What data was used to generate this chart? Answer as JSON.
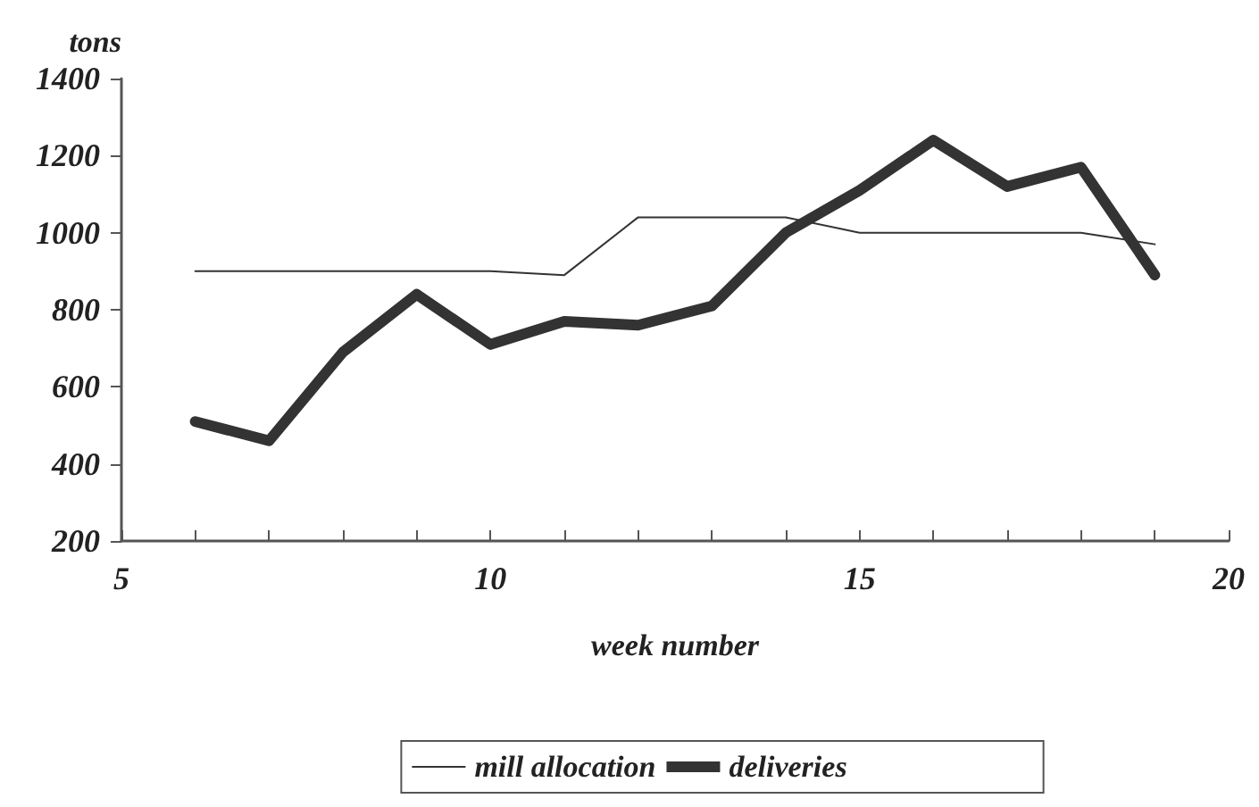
{
  "chart_data": {
    "type": "line",
    "xlabel": "week number",
    "ylabel": "tons",
    "x": [
      6,
      7,
      8,
      9,
      10,
      11,
      12,
      13,
      14,
      15,
      16,
      17,
      18,
      19
    ],
    "series": [
      {
        "name": "mill allocation",
        "color": "#333333",
        "values": [
          900,
          900,
          900,
          900,
          900,
          890,
          1040,
          1040,
          1040,
          1000,
          1000,
          1000,
          1000,
          970
        ]
      },
      {
        "name": "deliveries",
        "color": "#333333",
        "values": [
          510,
          460,
          690,
          840,
          710,
          770,
          760,
          810,
          1000,
          1110,
          1240,
          1120,
          1170,
          890
        ]
      }
    ],
    "xlim": [
      5,
      20
    ],
    "xticks": [
      5,
      {
        "value": 6,
        "label": null
      },
      {
        "value": 7,
        "label": null
      },
      {
        "value": 8,
        "label": null
      },
      {
        "value": 9,
        "label": null
      },
      10,
      {
        "value": 11,
        "label": null
      },
      {
        "value": 12,
        "label": null
      },
      {
        "value": 13,
        "label": null
      },
      {
        "value": 14,
        "label": null
      },
      15,
      {
        "value": 16,
        "label": null
      },
      {
        "value": 17,
        "label": null
      },
      {
        "value": 18,
        "label": null
      },
      {
        "value": 19,
        "label": null
      },
      20
    ],
    "ylim": [
      200,
      1400
    ],
    "yticks": [
      200,
      400,
      600,
      800,
      1000,
      1200,
      1400
    ],
    "legend": "bottom",
    "grid": false,
    "marker": "none",
    "line_style": "solid"
  }
}
